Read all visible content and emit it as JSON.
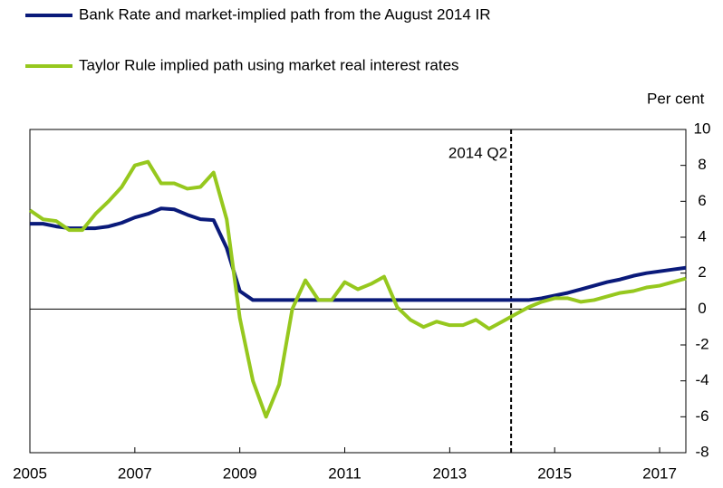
{
  "chart_data": {
    "type": "line",
    "y_axis_label": "Per cent",
    "x": [
      2005,
      2005.25,
      2005.5,
      2005.75,
      2006,
      2006.25,
      2006.5,
      2006.75,
      2007,
      2007.25,
      2007.5,
      2007.75,
      2008,
      2008.25,
      2008.5,
      2008.75,
      2009,
      2009.25,
      2009.5,
      2009.75,
      2010,
      2010.25,
      2010.5,
      2010.75,
      2011,
      2011.25,
      2011.5,
      2011.75,
      2012,
      2012.25,
      2012.5,
      2012.75,
      2013,
      2013.25,
      2013.5,
      2013.75,
      2014,
      2014.25,
      2014.5,
      2014.75,
      2015,
      2015.25,
      2015.5,
      2015.75,
      2016,
      2016.25,
      2016.5,
      2016.75,
      2017,
      2017.25,
      2017.5
    ],
    "series": [
      {
        "name": "Bank Rate and market-implied path from the August 2014 IR",
        "color": "#0a1a7a",
        "values": [
          4.75,
          4.75,
          4.6,
          4.5,
          4.5,
          4.5,
          4.6,
          4.8,
          5.1,
          5.3,
          5.6,
          5.55,
          5.25,
          5.0,
          4.95,
          3.4,
          1.0,
          0.5,
          0.5,
          0.5,
          0.5,
          0.5,
          0.5,
          0.5,
          0.5,
          0.5,
          0.5,
          0.5,
          0.5,
          0.5,
          0.5,
          0.5,
          0.5,
          0.5,
          0.5,
          0.5,
          0.5,
          0.5,
          0.5,
          0.6,
          0.75,
          0.9,
          1.1,
          1.3,
          1.5,
          1.65,
          1.85,
          2.0,
          2.1,
          2.2,
          2.3
        ]
      },
      {
        "name": "Taylor Rule implied path using market real interest rates",
        "color": "#96c81e",
        "values": [
          5.5,
          5.0,
          4.9,
          4.4,
          4.4,
          5.3,
          6.0,
          6.8,
          8.0,
          8.2,
          7.0,
          7.0,
          6.7,
          6.8,
          7.6,
          5.0,
          -0.5,
          -4.0,
          -6.0,
          -4.2,
          0.0,
          1.6,
          0.5,
          0.5,
          1.5,
          1.1,
          1.4,
          1.8,
          0.1,
          -0.6,
          -1.0,
          -0.7,
          -0.9,
          -0.9,
          -0.6,
          -1.1,
          -0.7,
          -0.3,
          0.1,
          0.4,
          0.6,
          0.6,
          0.4,
          0.5,
          0.7,
          0.9,
          1.0,
          1.2,
          1.3,
          1.5,
          1.7
        ]
      }
    ],
    "annotation": {
      "label": "2014 Q2",
      "x": 2014.17
    },
    "xlim": [
      2005,
      2017.5
    ],
    "xticks": [
      2005,
      2007,
      2009,
      2011,
      2013,
      2015,
      2017
    ],
    "ylim": [
      -8,
      10
    ],
    "yticks": [
      -8,
      -6,
      -4,
      -2,
      0,
      2,
      4,
      6,
      8,
      10
    ],
    "grid": false
  }
}
